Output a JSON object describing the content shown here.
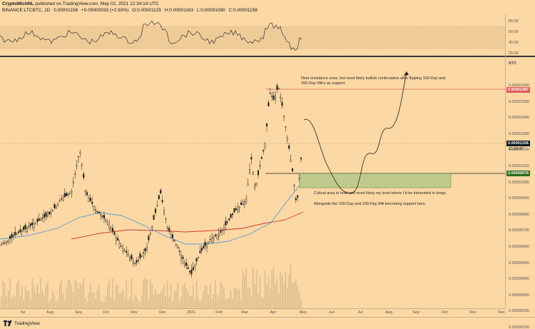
{
  "header": {
    "title_line1_author": "CryptoMichNL",
    "title_line1_text": " published on TradingView.com, May 02, 2021 12:34:14 UTC",
    "symbol": "BINANCE:LTCBTC, 1D",
    "price": "0.00001158",
    "change": "+0.00000033 (+2.93%)",
    "open": "O:0.00001125",
    "high": "H:0.00001163",
    "low": "L:0.00001090",
    "close": "C:0.00001158"
  },
  "rsi_axis": [
    "80.00",
    "60.00",
    "40.00",
    "20.00"
  ],
  "price_axis": {
    "currency": "BTC",
    "ticks": [
      "0.00001600",
      "0.00001500",
      "0.00001400",
      "0.00001300",
      "0.00001200",
      "0.00001100",
      "0.00001000",
      "0.00000900",
      "0.00000800",
      "0.00000700",
      "0.00000600",
      "0.00000500",
      "0.00000400",
      "0.00000300",
      "0.00000200",
      "0.00000100"
    ],
    "badges": {
      "resistance": "0.00001487",
      "current": "0.00001158",
      "current_time": "11:25:47",
      "support": "0.00000976"
    }
  },
  "time_axis": [
    "Jul",
    "Aug",
    "Sep",
    "Oct",
    "Nov",
    "Dec",
    "2021",
    "Feb",
    "Mar",
    "Apr",
    "May",
    "Jun",
    "Jul",
    "Aug",
    "Sep",
    "Oct",
    "Nov",
    "Dec"
  ],
  "notes": {
    "resistance": "Next resistance zone, but most likely bullish continuation after flipping 100-Day and\n200-Day MA's as support.",
    "critical": "Critical area to hold and most likely my level where I'd be interested in longs.",
    "alongside": "Alongside the 100-Day and 200-Day MA becoming support here."
  },
  "footer": {
    "brand": "TradingView"
  },
  "colors": {
    "background": "#fbd8a4",
    "candle": "#1a1a1a",
    "ma100": "#5b9bd5",
    "ma200": "#d03a2a",
    "resistance_line": "#e06060",
    "support_box": "#b5c98a",
    "support_badge": "#2e6b1a",
    "resistance_badge": "#e05a5a"
  }
}
